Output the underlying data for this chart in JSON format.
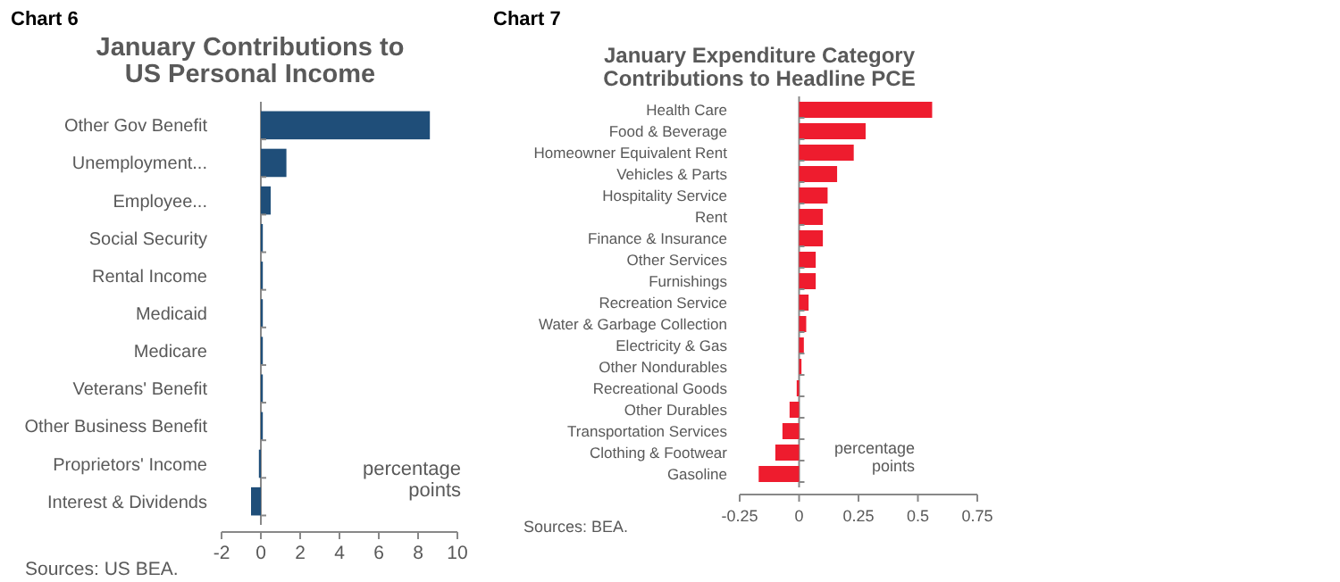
{
  "chart_data": [
    {
      "type": "bar",
      "orientation": "horizontal",
      "title": "January Contributions to\nUS Personal Income",
      "categories": [
        "Other Gov Benefit",
        "Unemployment...",
        "Employee...",
        "Social Security",
        "Rental Income",
        "Medicaid",
        "Medicare",
        "Veterans' Benefit",
        "Other Business Benefit",
        "Proprietors' Income",
        "Interest & Dividends"
      ],
      "values": [
        8.6,
        1.3,
        0.5,
        0.1,
        0.1,
        0.1,
        0.1,
        0.1,
        0.1,
        -0.1,
        -0.5
      ],
      "color": "#1f4e79",
      "xlim": [
        -2,
        10
      ],
      "xticks": [
        -2,
        0,
        2,
        4,
        6,
        8,
        10
      ],
      "annotations": [
        "Chart 6",
        {
          "text": "percentage\npoints"
        },
        "Sources: US BEA."
      ]
    },
    {
      "type": "bar",
      "orientation": "horizontal",
      "title": "January Expenditure Category\nContributions to Headline PCE",
      "categories": [
        "Health Care",
        "Food & Beverage",
        "Homeowner Equivalent Rent",
        "Vehicles & Parts",
        "Hospitality Service",
        "Rent",
        "Finance & Insurance",
        "Other Services",
        "Furnishings",
        "Recreation Service",
        "Water & Garbage Collection",
        "Electricity & Gas",
        "Other Nondurables",
        "Recreational Goods",
        "Other Durables",
        "Transportation Services",
        "Clothing & Footwear",
        "Gasoline"
      ],
      "values": [
        0.56,
        0.28,
        0.23,
        0.16,
        0.12,
        0.1,
        0.1,
        0.07,
        0.07,
        0.04,
        0.03,
        0.02,
        0.01,
        -0.01,
        -0.04,
        -0.07,
        -0.1,
        -0.17
      ],
      "color": "#ee1c2e",
      "xlim": [
        -0.25,
        0.75
      ],
      "xticks": [
        -0.25,
        0,
        0.25,
        0.5,
        0.75
      ],
      "annotations": [
        "Chart 7",
        {
          "text": "percentage\npoints"
        },
        "Sources: BEA."
      ]
    }
  ]
}
